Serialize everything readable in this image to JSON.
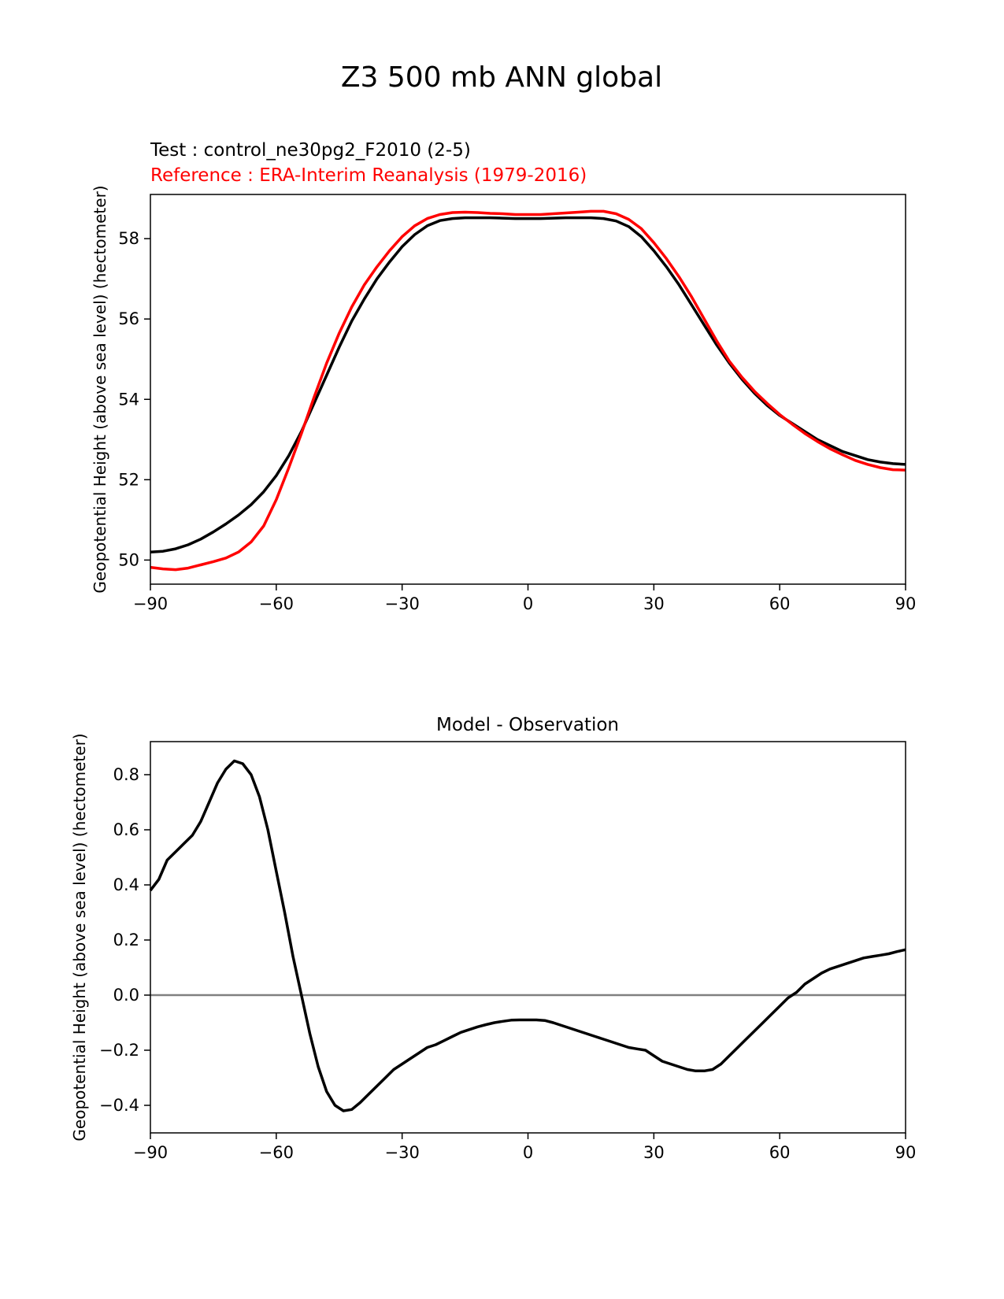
{
  "figure": {
    "title": "Z3 500 mb ANN global"
  },
  "chart_data": [
    {
      "type": "line",
      "test_label": "Test : control_ne30pg2_F2010 (2-5)",
      "reference_label": "Reference : ERA-Interim Reanalysis (1979-2016)",
      "ylabel": "Geopotential Height (above sea level) (hectometer)",
      "xlabel": "",
      "xlim": [
        -90,
        90
      ],
      "ylim": [
        49.4,
        59.1
      ],
      "xticks": [
        -90,
        -60,
        -30,
        0,
        30,
        60,
        90
      ],
      "xtick_labels": [
        "−90",
        "−60",
        "−30",
        "0",
        "30",
        "60",
        "90"
      ],
      "yticks": [
        50,
        52,
        54,
        56,
        58
      ],
      "ytick_labels": [
        "50",
        "52",
        "54",
        "56",
        "58"
      ],
      "series": [
        {
          "name": "Test",
          "color": "#000000",
          "x": [
            -90,
            -87,
            -84,
            -81,
            -78,
            -75,
            -72,
            -69,
            -66,
            -63,
            -60,
            -57,
            -54,
            -51,
            -48,
            -45,
            -42,
            -39,
            -36,
            -33,
            -30,
            -27,
            -24,
            -21,
            -18,
            -15,
            -12,
            -9,
            -6,
            -3,
            0,
            3,
            6,
            9,
            12,
            15,
            18,
            21,
            24,
            27,
            30,
            33,
            36,
            39,
            42,
            45,
            48,
            51,
            54,
            57,
            60,
            63,
            66,
            69,
            72,
            75,
            78,
            81,
            84,
            87,
            90
          ],
          "y": [
            50.2,
            50.22,
            50.28,
            50.38,
            50.52,
            50.7,
            50.9,
            51.12,
            51.38,
            51.7,
            52.1,
            52.6,
            53.2,
            53.9,
            54.6,
            55.3,
            55.95,
            56.5,
            57.0,
            57.42,
            57.8,
            58.1,
            58.32,
            58.45,
            58.5,
            58.52,
            58.52,
            58.52,
            58.51,
            58.5,
            58.5,
            58.5,
            58.51,
            58.52,
            58.52,
            58.52,
            58.5,
            58.44,
            58.3,
            58.05,
            57.7,
            57.3,
            56.85,
            56.35,
            55.85,
            55.35,
            54.9,
            54.5,
            54.15,
            53.85,
            53.6,
            53.4,
            53.2,
            53.0,
            52.85,
            52.7,
            52.6,
            52.5,
            52.44,
            52.4,
            52.38
          ]
        },
        {
          "name": "Reference",
          "color": "#ff0000",
          "x": [
            -90,
            -87,
            -84,
            -81,
            -78,
            -75,
            -72,
            -69,
            -66,
            -63,
            -60,
            -57,
            -54,
            -51,
            -48,
            -45,
            -42,
            -39,
            -36,
            -33,
            -30,
            -27,
            -24,
            -21,
            -18,
            -15,
            -12,
            -9,
            -6,
            -3,
            0,
            3,
            6,
            9,
            12,
            15,
            18,
            21,
            24,
            27,
            30,
            33,
            36,
            39,
            42,
            45,
            48,
            51,
            54,
            57,
            60,
            63,
            66,
            69,
            72,
            75,
            78,
            81,
            84,
            87,
            90
          ],
          "y": [
            49.82,
            49.78,
            49.76,
            49.8,
            49.88,
            49.96,
            50.05,
            50.2,
            50.45,
            50.85,
            51.5,
            52.3,
            53.15,
            54.05,
            54.9,
            55.65,
            56.3,
            56.85,
            57.3,
            57.7,
            58.05,
            58.32,
            58.5,
            58.6,
            58.65,
            58.66,
            58.65,
            58.63,
            58.62,
            58.6,
            58.6,
            58.6,
            58.62,
            58.64,
            58.66,
            58.68,
            58.68,
            58.62,
            58.48,
            58.25,
            57.9,
            57.5,
            57.05,
            56.55,
            56.0,
            55.45,
            54.95,
            54.55,
            54.2,
            53.9,
            53.62,
            53.38,
            53.15,
            52.95,
            52.77,
            52.62,
            52.48,
            52.38,
            52.3,
            52.25,
            52.24
          ]
        }
      ]
    },
    {
      "type": "line",
      "title": "Model - Observation",
      "ylabel": "Geopotential Height (above sea level) (hectometer)",
      "xlabel": "",
      "xlim": [
        -90,
        90
      ],
      "ylim": [
        -0.5,
        0.92
      ],
      "xticks": [
        -90,
        -60,
        -30,
        0,
        30,
        60,
        90
      ],
      "xtick_labels": [
        "−90",
        "−60",
        "−30",
        "0",
        "30",
        "60",
        "90"
      ],
      "yticks": [
        -0.4,
        -0.2,
        0.0,
        0.2,
        0.4,
        0.6,
        0.8
      ],
      "ytick_labels": [
        "−0.4",
        "−0.2",
        "0.0",
        "0.2",
        "0.4",
        "0.6",
        "0.8"
      ],
      "zero_line_color": "#808080",
      "series": [
        {
          "name": "Model - Observation",
          "color": "#000000",
          "x": [
            -90,
            -88,
            -86,
            -84,
            -82,
            -80,
            -78,
            -76,
            -74,
            -72,
            -70,
            -68,
            -66,
            -64,
            -62,
            -60,
            -58,
            -56,
            -54,
            -52,
            -50,
            -48,
            -46,
            -44,
            -42,
            -40,
            -38,
            -36,
            -34,
            -32,
            -30,
            -28,
            -26,
            -24,
            -22,
            -20,
            -18,
            -16,
            -14,
            -12,
            -10,
            -8,
            -6,
            -4,
            -2,
            0,
            2,
            4,
            6,
            8,
            10,
            12,
            14,
            16,
            18,
            20,
            22,
            24,
            26,
            28,
            30,
            32,
            34,
            36,
            38,
            40,
            42,
            44,
            46,
            48,
            50,
            52,
            54,
            56,
            58,
            60,
            62,
            64,
            66,
            68,
            70,
            72,
            74,
            76,
            78,
            80,
            82,
            84,
            86,
            88,
            90
          ],
          "y": [
            0.38,
            0.42,
            0.49,
            0.52,
            0.55,
            0.58,
            0.63,
            0.7,
            0.77,
            0.82,
            0.85,
            0.84,
            0.8,
            0.72,
            0.6,
            0.45,
            0.3,
            0.14,
            0.0,
            -0.14,
            -0.26,
            -0.35,
            -0.4,
            -0.42,
            -0.415,
            -0.39,
            -0.36,
            -0.33,
            -0.3,
            -0.27,
            -0.25,
            -0.23,
            -0.21,
            -0.19,
            -0.18,
            -0.165,
            -0.15,
            -0.135,
            -0.125,
            -0.115,
            -0.107,
            -0.1,
            -0.095,
            -0.091,
            -0.09,
            -0.09,
            -0.09,
            -0.092,
            -0.1,
            -0.11,
            -0.12,
            -0.13,
            -0.14,
            -0.15,
            -0.16,
            -0.17,
            -0.18,
            -0.19,
            -0.195,
            -0.2,
            -0.22,
            -0.24,
            -0.25,
            -0.26,
            -0.27,
            -0.275,
            -0.275,
            -0.27,
            -0.25,
            -0.22,
            -0.19,
            -0.16,
            -0.13,
            -0.1,
            -0.07,
            -0.04,
            -0.01,
            0.01,
            0.04,
            0.06,
            0.08,
            0.095,
            0.105,
            0.115,
            0.125,
            0.135,
            0.14,
            0.145,
            0.15,
            0.158,
            0.165
          ]
        }
      ]
    }
  ]
}
